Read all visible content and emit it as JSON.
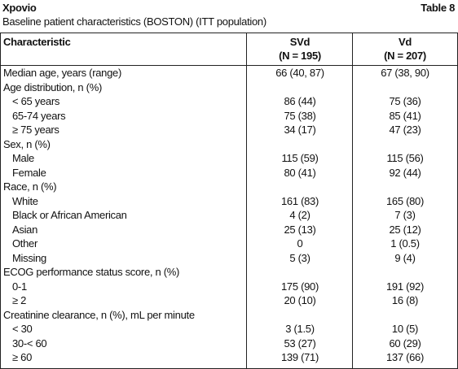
{
  "header": {
    "title": "Xpovio",
    "table_number": "Table 8",
    "subtitle": "Baseline patient characteristics (BOSTON) (ITT population)"
  },
  "table": {
    "columns": [
      {
        "name": "Characteristic"
      },
      {
        "name": "SVd",
        "n": "(N = 195)"
      },
      {
        "name": "Vd",
        "n": "(N = 207)"
      }
    ],
    "rows": [
      {
        "label": "Median age, years (range)",
        "svd": "66 (40, 87)",
        "vd": "67 (38, 90)"
      },
      {
        "label": "Age distribution, n (%)"
      },
      {
        "label": "< 65 years",
        "svd": "86 (44)",
        "vd": "75 (36)"
      },
      {
        "label": "65-74 years",
        "svd": "75 (38)",
        "vd": "85 (41)"
      },
      {
        "label": "≥ 75 years",
        "svd": "34 (17)",
        "vd": "47 (23)"
      },
      {
        "label": "Sex, n (%)"
      },
      {
        "label": "Male",
        "svd": "115 (59)",
        "vd": "115 (56)"
      },
      {
        "label": "Female",
        "svd": "80 (41)",
        "vd": "92 (44)"
      },
      {
        "label": "Race, n (%)"
      },
      {
        "label": "White",
        "svd": "161 (83)",
        "vd": "165 (80)"
      },
      {
        "label": "Black or African American",
        "svd": "4 (2)",
        "vd": "7 (3)"
      },
      {
        "label": "Asian",
        "svd": "25 (13)",
        "vd": "25 (12)"
      },
      {
        "label": "Other",
        "svd": "0",
        "vd": "1 (0.5)"
      },
      {
        "label": "Missing",
        "svd": "5 (3)",
        "vd": "9 (4)"
      },
      {
        "label": "ECOG performance status score, n (%)"
      },
      {
        "label": "0-1",
        "svd": "175 (90)",
        "vd": "191 (92)"
      },
      {
        "label": "≥ 2",
        "svd": "20 (10)",
        "vd": "16 (8)"
      },
      {
        "label": "Creatinine clearance, n (%), mL per minute"
      },
      {
        "label": "< 30",
        "svd": "3 (1.5)",
        "vd": "10 (5)"
      },
      {
        "label": "30-< 60",
        "svd": "53 (27)",
        "vd": "60 (29)"
      },
      {
        "label": "≥ 60",
        "svd": "139 (71)",
        "vd": "137 (66)"
      }
    ]
  }
}
